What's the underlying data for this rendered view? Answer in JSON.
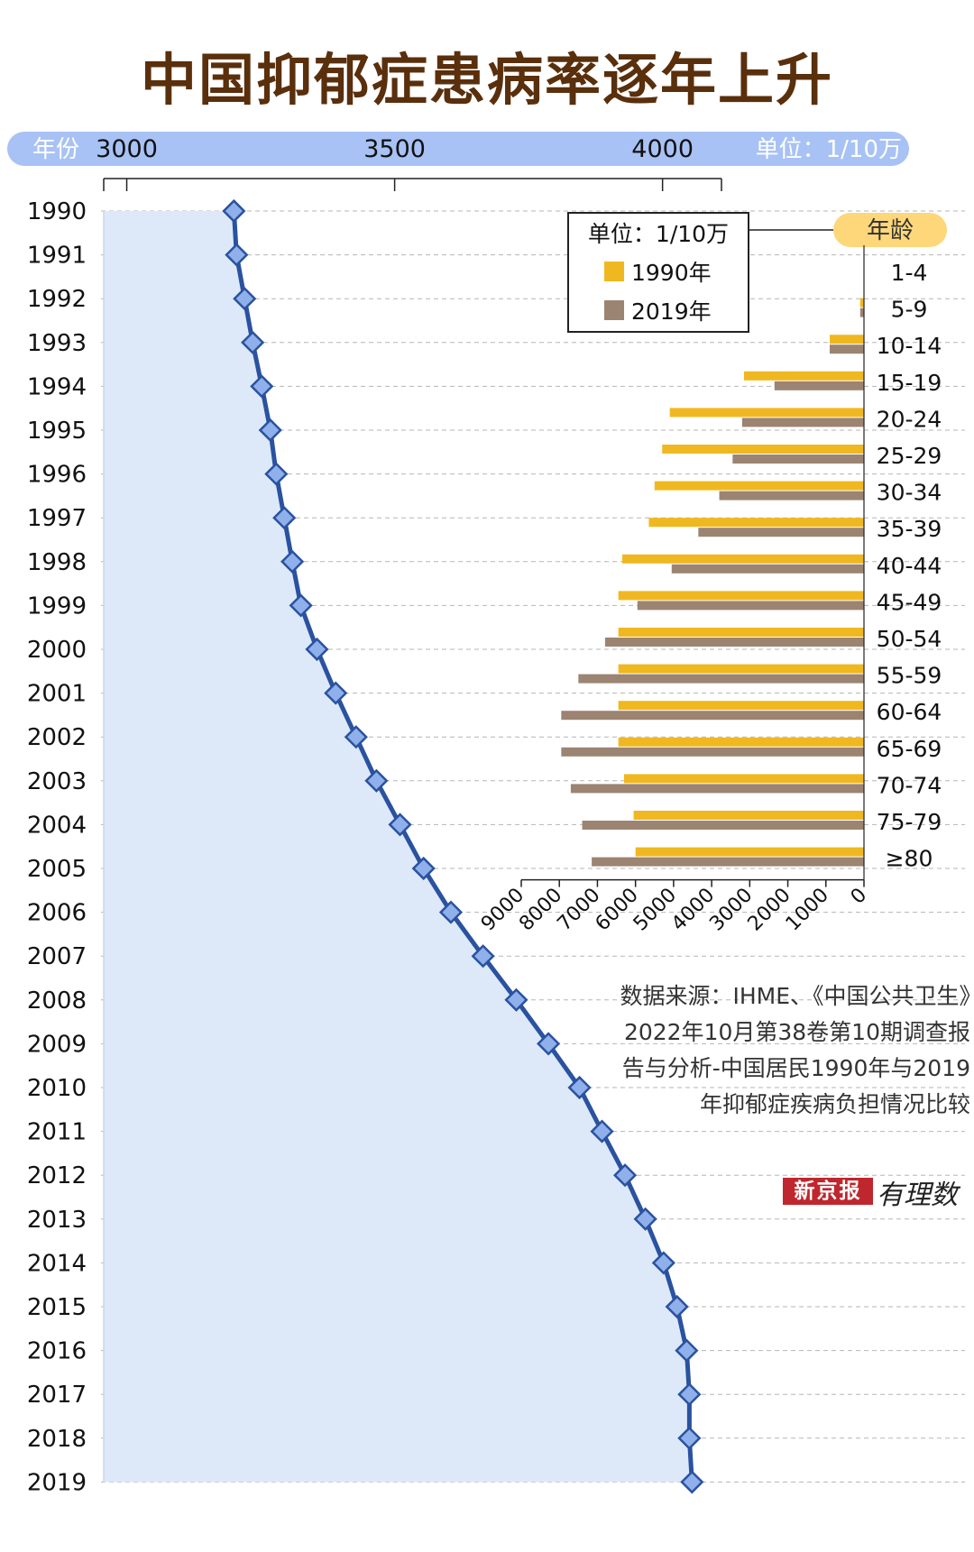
{
  "title": "中国抑郁症患病率逐年上升",
  "source_text": "数据来源：IHME、《中国公共卫生》2022年10月第38卷第10期调查报告与分析-中国居民1990年与2019年抑郁症疾病负担情况比较",
  "brand": {
    "name": "新京报",
    "sub": "有理数"
  },
  "colors": {
    "main_line": "#2a52a0",
    "area": "#dde9f8",
    "header_bar": "#a8c2f5",
    "bar_1990": "#f0b820",
    "bar_2019": "#9c8472",
    "age_badge": "#fdd77a"
  },
  "chart_data": [
    {
      "type": "line",
      "orientation": "vertical-time",
      "header_left_label": "年份",
      "unit_label": "单位：1/10万",
      "x_ticks": [
        "3000",
        "3500",
        "4000"
      ],
      "xlim": [
        2957,
        4110
      ],
      "x": [
        "1990",
        "1991",
        "1992",
        "1993",
        "1994",
        "1995",
        "1996",
        "1997",
        "1998",
        "1999",
        "2000",
        "2001",
        "2002",
        "2003",
        "2004",
        "2005",
        "2006",
        "2007",
        "2008",
        "2009",
        "2010",
        "2011",
        "2012",
        "2013",
        "2014",
        "2015",
        "2016",
        "2017",
        "2018",
        "2019"
      ],
      "values": [
        3200,
        3205,
        3220,
        3235,
        3252,
        3268,
        3279,
        3294,
        3309,
        3325,
        3355,
        3390,
        3428,
        3466,
        3510,
        3554,
        3605,
        3665,
        3727,
        3787,
        3845,
        3887,
        3930,
        3968,
        4002,
        4027,
        4045,
        4050,
        4050,
        4055
      ]
    },
    {
      "type": "bar",
      "orientation": "horizontal-leftward",
      "age_header": "年龄",
      "legend_title": "单位：1/10万",
      "x_ticks": [
        "9000",
        "8000",
        "7000",
        "6000",
        "5000",
        "4000",
        "3000",
        "2000",
        "1000",
        "0"
      ],
      "xlim": [
        0,
        9000
      ],
      "categories": [
        "1-4",
        "5-9",
        "10-14",
        "15-19",
        "20-24",
        "25-29",
        "30-34",
        "35-39",
        "40-44",
        "45-49",
        "50-54",
        "55-59",
        "60-64",
        "65-69",
        "70-74",
        "75-79",
        "≥80"
      ],
      "series": [
        {
          "name": "1990年",
          "values": [
            0,
            100,
            900,
            3150,
            5100,
            5300,
            5500,
            5650,
            6350,
            6450,
            6450,
            6450,
            6450,
            6450,
            6300,
            6050,
            6000
          ]
        },
        {
          "name": "2019年",
          "values": [
            0,
            100,
            900,
            2350,
            3200,
            3450,
            3800,
            4350,
            5050,
            5950,
            6800,
            7500,
            7950,
            7950,
            7700,
            7400,
            7150
          ]
        }
      ]
    }
  ]
}
